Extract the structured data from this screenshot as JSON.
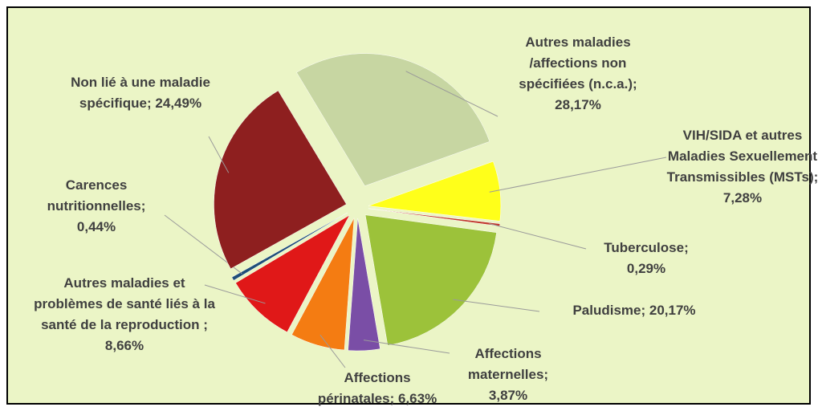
{
  "chart_data": {
    "type": "pie",
    "categories": [
      "Autres maladies /affections non spécifiées (n.c.a.);",
      "VIH/SIDA et autres Maladies Sexuellement Transmissibles (MSTs);",
      "Tuberculose;",
      "Paludisme;",
      "Affections maternelles;",
      "Affections périnatales;",
      "Autres maladies et problèmes de santé liés à la santé de la reproduction ;",
      "Carences nutritionnelles;",
      "Non lié à une maladie spécifique;"
    ],
    "values": [
      28.17,
      7.28,
      0.29,
      20.17,
      3.87,
      6.63,
      8.66,
      0.44,
      24.49
    ],
    "value_labels": [
      "28,17%",
      "7,28%",
      "0,29%",
      "20,17%",
      "3,87%",
      "6,63%",
      "8,66%",
      "0,44%",
      "24,49%"
    ],
    "colors": [
      "#c7d6a2",
      "#ffff1a",
      "#c0392b",
      "#9cc23a",
      "#7a4ea6",
      "#f47c12",
      "#e01818",
      "#1f4e79",
      "#8e1f1f"
    ]
  }
}
